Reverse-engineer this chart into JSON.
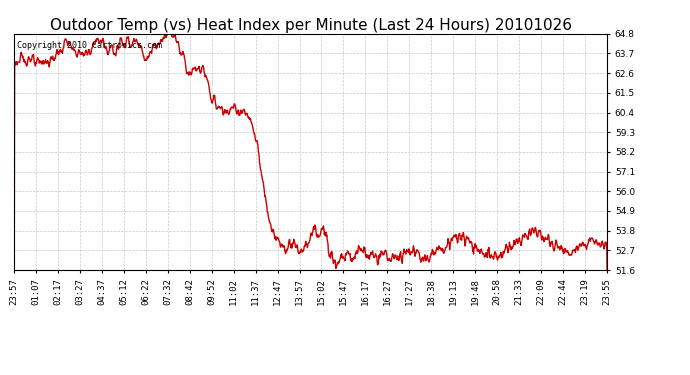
{
  "title": "Outdoor Temp (vs) Heat Index per Minute (Last 24 Hours) 20101026",
  "copyright_text": "Copyright 2010 Cartronics.com",
  "line_color": "#cc0000",
  "background_color": "#ffffff",
  "grid_color": "#bbbbbb",
  "yticks": [
    51.6,
    52.7,
    53.8,
    54.9,
    56.0,
    57.1,
    58.2,
    59.3,
    60.4,
    61.5,
    62.6,
    63.7,
    64.8
  ],
  "ylim": [
    51.6,
    64.8
  ],
  "xtick_labels": [
    "23:57",
    "01:07",
    "02:17",
    "03:27",
    "04:37",
    "05:12",
    "06:22",
    "07:32",
    "08:42",
    "09:52",
    "11:02",
    "11:37",
    "12:47",
    "13:57",
    "15:02",
    "15:47",
    "16:17",
    "16:27",
    "17:27",
    "18:38",
    "19:13",
    "19:48",
    "20:58",
    "21:33",
    "22:09",
    "22:44",
    "23:19",
    "23:55"
  ],
  "title_fontsize": 11,
  "tick_fontsize": 6.5,
  "copyright_fontsize": 6,
  "line_width": 1.0
}
